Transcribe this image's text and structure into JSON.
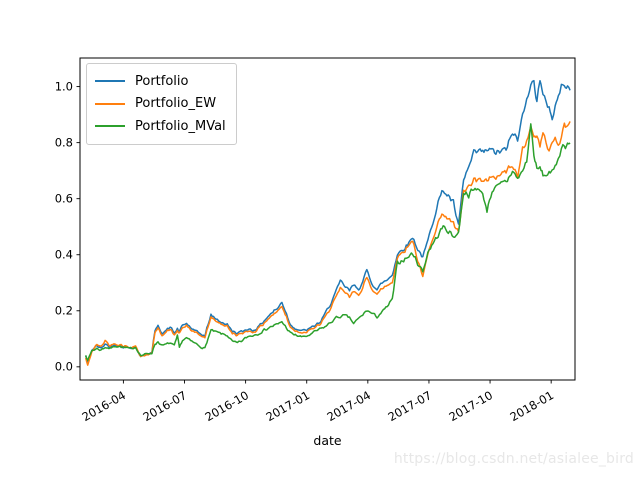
{
  "watermark": "https://blog.csdn.net/asialee_bird",
  "chart_data": {
    "type": "line",
    "title": "",
    "xlabel": "date",
    "ylabel": "",
    "grid": false,
    "legend_position": "upper left",
    "x_axis": {
      "unit": "months since 2016-01-01 (e.g. 3 = 2016-04)",
      "tick_positions": [
        3,
        6,
        9,
        12,
        15,
        18,
        21,
        24
      ],
      "tick_labels": [
        "2016-04",
        "2016-07",
        "2016-10",
        "2017-01",
        "2017-04",
        "2017-07",
        "2017-10",
        "2018-01"
      ],
      "lim": [
        0.87,
        25.17
      ],
      "label_rotation_deg": 30
    },
    "y_axis": {
      "tick_positions": [
        0.0,
        0.2,
        0.4,
        0.6,
        0.8,
        1.0
      ],
      "tick_labels": [
        "0.0",
        "0.2",
        "0.4",
        "0.6",
        "0.8",
        "1.0"
      ],
      "lim": [
        -0.047,
        1.102
      ]
    },
    "x": [
      1.15,
      1.25,
      1.45,
      1.7,
      1.9,
      2.1,
      2.35,
      2.6,
      2.95,
      3.3,
      3.6,
      3.85,
      4.1,
      4.4,
      4.55,
      4.7,
      4.9,
      5.1,
      5.3,
      5.5,
      5.65,
      5.75,
      5.9,
      6.1,
      6.3,
      6.5,
      6.8,
      7.0,
      7.15,
      7.3,
      7.55,
      7.8,
      8.1,
      8.35,
      8.6,
      8.85,
      9.1,
      9.35,
      9.6,
      9.85,
      10.1,
      10.4,
      10.6,
      10.78,
      11.0,
      11.2,
      11.5,
      11.8,
      12.0,
      12.2,
      12.45,
      12.7,
      12.95,
      13.2,
      13.45,
      13.65,
      13.9,
      14.1,
      14.3,
      14.55,
      14.75,
      14.95,
      15.2,
      15.45,
      15.7,
      15.95,
      16.2,
      16.45,
      16.7,
      16.95,
      17.2,
      17.45,
      17.7,
      17.95,
      18.2,
      18.45,
      18.7,
      18.95,
      19.2,
      19.45,
      19.7,
      19.95,
      20.2,
      20.45,
      20.7,
      20.85,
      21.1,
      21.35,
      21.6,
      21.85,
      22.1,
      22.35,
      22.6,
      22.8,
      23.0,
      23.15,
      23.3,
      23.45,
      23.6,
      23.75,
      23.9,
      24.05,
      24.2,
      24.35,
      24.5,
      24.65,
      24.8,
      24.93
    ],
    "series": [
      {
        "name": "Portfolio",
        "color": "#1f77b4",
        "values": [
          0.04,
          0.012,
          0.06,
          0.075,
          0.065,
          0.082,
          0.07,
          0.08,
          0.072,
          0.068,
          0.072,
          0.036,
          0.044,
          0.05,
          0.13,
          0.145,
          0.122,
          0.13,
          0.142,
          0.12,
          0.135,
          0.125,
          0.148,
          0.155,
          0.14,
          0.128,
          0.118,
          0.11,
          0.15,
          0.185,
          0.17,
          0.16,
          0.15,
          0.128,
          0.12,
          0.126,
          0.136,
          0.13,
          0.14,
          0.16,
          0.18,
          0.2,
          0.21,
          0.232,
          0.19,
          0.15,
          0.135,
          0.128,
          0.132,
          0.138,
          0.15,
          0.162,
          0.196,
          0.23,
          0.27,
          0.305,
          0.285,
          0.272,
          0.292,
          0.28,
          0.3,
          0.345,
          0.3,
          0.274,
          0.3,
          0.31,
          0.33,
          0.4,
          0.42,
          0.435,
          0.464,
          0.42,
          0.39,
          0.45,
          0.52,
          0.59,
          0.63,
          0.61,
          0.585,
          0.5,
          0.667,
          0.71,
          0.76,
          0.77,
          0.765,
          0.775,
          0.77,
          0.765,
          0.77,
          0.78,
          0.84,
          0.805,
          0.9,
          0.97,
          1.0,
          1.012,
          0.958,
          1.024,
          0.96,
          0.945,
          0.93,
          0.887,
          0.93,
          0.965,
          1.006,
          0.99,
          1.02,
          0.995
        ]
      },
      {
        "name": "Portfolio_EW",
        "color": "#ff7f0e",
        "values": [
          0.03,
          0.006,
          0.055,
          0.08,
          0.07,
          0.095,
          0.075,
          0.085,
          0.075,
          0.07,
          0.075,
          0.035,
          0.043,
          0.048,
          0.125,
          0.138,
          0.115,
          0.124,
          0.135,
          0.113,
          0.128,
          0.118,
          0.14,
          0.148,
          0.133,
          0.122,
          0.112,
          0.105,
          0.143,
          0.176,
          0.163,
          0.153,
          0.143,
          0.12,
          0.113,
          0.12,
          0.13,
          0.124,
          0.134,
          0.153,
          0.172,
          0.19,
          0.2,
          0.214,
          0.18,
          0.14,
          0.128,
          0.12,
          0.125,
          0.13,
          0.143,
          0.155,
          0.185,
          0.215,
          0.25,
          0.28,
          0.262,
          0.25,
          0.268,
          0.258,
          0.278,
          0.32,
          0.28,
          0.256,
          0.28,
          0.29,
          0.305,
          0.39,
          0.41,
          0.425,
          0.452,
          0.38,
          0.32,
          0.4,
          0.46,
          0.52,
          0.548,
          0.53,
          0.51,
          0.477,
          0.625,
          0.64,
          0.66,
          0.67,
          0.66,
          0.668,
          0.672,
          0.68,
          0.69,
          0.7,
          0.72,
          0.674,
          0.78,
          0.815,
          0.85,
          0.82,
          0.84,
          0.785,
          0.82,
          0.8,
          0.768,
          0.8,
          0.815,
          0.79,
          0.82,
          0.855,
          0.875,
          0.885
        ]
      },
      {
        "name": "Portfolio_MVal",
        "color": "#2ca02c",
        "values": [
          0.045,
          0.022,
          0.058,
          0.065,
          0.06,
          0.07,
          0.065,
          0.075,
          0.07,
          0.065,
          0.07,
          0.04,
          0.045,
          0.05,
          0.08,
          0.09,
          0.075,
          0.08,
          0.086,
          0.074,
          0.11,
          0.068,
          0.095,
          0.103,
          0.092,
          0.085,
          0.072,
          0.065,
          0.1,
          0.13,
          0.124,
          0.118,
          0.112,
          0.09,
          0.085,
          0.094,
          0.108,
          0.112,
          0.118,
          0.128,
          0.138,
          0.148,
          0.152,
          0.161,
          0.14,
          0.12,
          0.112,
          0.106,
          0.11,
          0.115,
          0.128,
          0.136,
          0.145,
          0.16,
          0.175,
          0.18,
          0.182,
          0.175,
          0.155,
          0.172,
          0.185,
          0.202,
          0.19,
          0.179,
          0.195,
          0.215,
          0.24,
          0.37,
          0.38,
          0.39,
          0.405,
          0.37,
          0.34,
          0.41,
          0.44,
          0.47,
          0.5,
          0.485,
          0.465,
          0.477,
          0.625,
          0.615,
          0.63,
          0.64,
          0.6,
          0.56,
          0.63,
          0.64,
          0.655,
          0.665,
          0.7,
          0.67,
          0.7,
          0.735,
          0.863,
          0.76,
          0.7,
          0.71,
          0.685,
          0.68,
          0.7,
          0.69,
          0.71,
          0.75,
          0.78,
          0.79,
          0.795,
          0.8
        ]
      }
    ]
  }
}
